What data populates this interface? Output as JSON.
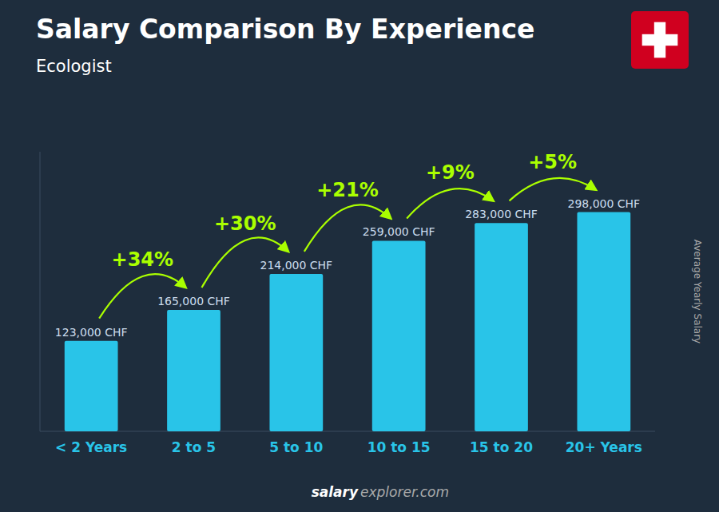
{
  "chart_data": {
    "type": "bar",
    "title": "Salary Comparison By Experience",
    "subtitle": "Ecologist",
    "ylabel": "Average Yearly Salary",
    "source": [
      "salary",
      "explorer.com"
    ],
    "categories": [
      "< 2 Years",
      "2 to 5",
      "5 to 10",
      "10 to 15",
      "15 to 20",
      "20+ Years"
    ],
    "values": [
      123000,
      165000,
      214000,
      259000,
      283000,
      298000
    ],
    "value_labels": [
      "123,000 CHF",
      "165,000 CHF",
      "214,000 CHF",
      "259,000 CHF",
      "283,000 CHF",
      "298,000 CHF"
    ],
    "annotations": [
      "+34%",
      "+30%",
      "+21%",
      "+9%",
      "+5%"
    ],
    "color": "#29c4e8",
    "ylim": [
      0,
      380000
    ],
    "data_labels": true,
    "tick_labels": false
  }
}
